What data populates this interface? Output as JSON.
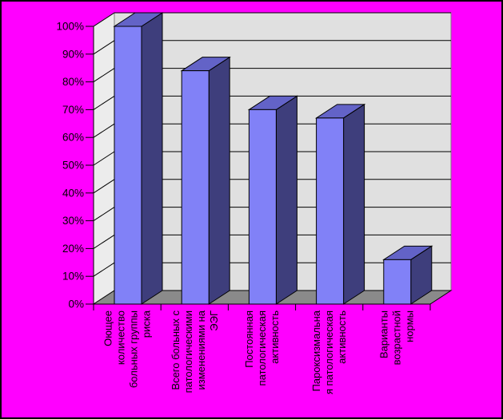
{
  "chart_data": {
    "type": "bar",
    "variant": "3d-column",
    "title": "",
    "legend": false,
    "grid": true,
    "background_color": "#FF00FF",
    "categories": [
      "Оющее количество больных группы риска",
      "Всего больных с патологическими изменениями на ЭЭГ",
      "Постоянная патологическая активность",
      "Пароксизмальна я патологическая активность",
      "Варианты возрастной нормы"
    ],
    "category_label_lines": [
      [
        "Оющее",
        "количество",
        "больных группы",
        "риска"
      ],
      [
        "Всего больных с",
        "патологическими",
        "изменениями на",
        "ЭЭГ"
      ],
      [
        "Постоянная",
        "патологическая",
        "активность"
      ],
      [
        "Пароксизмальна",
        "я патологическая",
        "активность"
      ],
      [
        "Варианты",
        "возрастной",
        "нормы"
      ]
    ],
    "values": [
      100,
      84,
      70,
      67,
      16
    ],
    "value_unit": "%",
    "ylim": [
      0,
      100
    ],
    "y_tick_step": 10,
    "y_tick_labels": [
      "0%",
      "10%",
      "20%",
      "30%",
      "40%",
      "50%",
      "60%",
      "70%",
      "80%",
      "90%",
      "100%"
    ],
    "colors": {
      "bar_front": "#8181F7",
      "bar_top": "#6363C7",
      "bar_side": "#3E3E7C",
      "wall_left": "#ECECEC",
      "wall_back": "#E0E0E0",
      "floor": "#8A8A8A",
      "gridline": "#000000",
      "axis": "#000000",
      "wall_edge": "#808080",
      "background": "#FF00FF",
      "outer_border": "#000000",
      "label_text": "#000000"
    }
  }
}
